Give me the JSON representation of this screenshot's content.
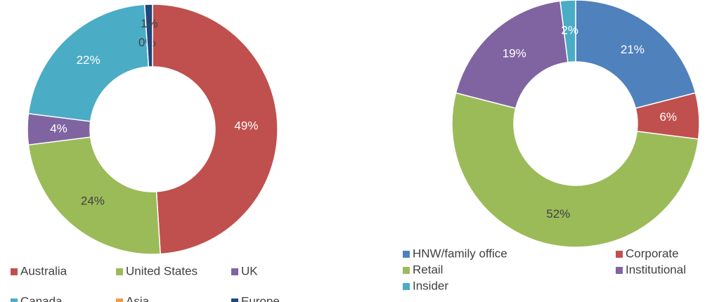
{
  "chart_data": [
    {
      "type": "pie",
      "hole": 0.5,
      "categories": [
        "Australia",
        "United States",
        "UK",
        "Canada",
        "Asia",
        "Europe"
      ],
      "values": [
        49,
        24,
        4,
        22,
        0,
        1
      ],
      "value_labels": [
        "49%",
        "24%",
        "4%",
        "22%",
        "0%",
        "1%"
      ],
      "colors": [
        "#c0504d",
        "#9bbb59",
        "#8064a2",
        "#4bacc6",
        "#f79646",
        "#1f497d"
      ],
      "legend": "bottom"
    },
    {
      "type": "pie",
      "hole": 0.5,
      "categories": [
        "HNW/family office",
        "Corporate",
        "Retail",
        "Institutional",
        "Insider"
      ],
      "values": [
        21,
        6,
        52,
        19,
        2
      ],
      "value_labels": [
        "21%",
        "6%",
        "52%",
        "19%",
        "2%"
      ],
      "colors": [
        "#4f81bd",
        "#c0504d",
        "#9bbb59",
        "#8064a2",
        "#4bacc6"
      ],
      "legend": "bottom"
    }
  ]
}
